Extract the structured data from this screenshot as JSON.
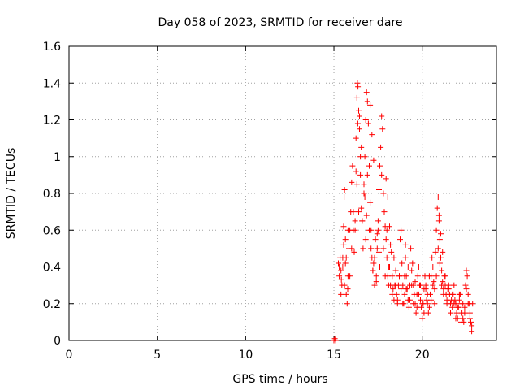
{
  "chart_data": {
    "type": "scatter",
    "title": "Day 058 of 2023, SRMTID for receiver dare",
    "xlabel": "GPS time / hours",
    "ylabel": "SRMTID / TECUs",
    "xlim": [
      0,
      24.2
    ],
    "ylim": [
      0,
      1.6
    ],
    "xticks": [
      0,
      5,
      10,
      15,
      20
    ],
    "yticks": [
      0,
      0.2,
      0.4,
      0.6,
      0.8,
      1,
      1.2,
      1.4,
      1.6
    ],
    "ytick_labels": [
      "0",
      "0.2",
      "0.4",
      "0.6",
      "0.8",
      "1",
      "1.2",
      "1.4",
      "1.6"
    ],
    "grid": true,
    "marker": "+",
    "color": "#ff0000",
    "series": [
      {
        "name": "SRMTID",
        "x": [
          15.0,
          15.05,
          15.1,
          15.25,
          15.3,
          15.35,
          15.4,
          15.42,
          15.45,
          15.5,
          15.55,
          15.58,
          15.6,
          15.65,
          15.7,
          15.75,
          15.78,
          15.8,
          15.85,
          15.9,
          15.95,
          16.0,
          16.05,
          16.1,
          16.15,
          16.2,
          16.25,
          16.3,
          16.33,
          16.36,
          16.4,
          16.45,
          16.5,
          16.55,
          16.6,
          16.65,
          16.7,
          16.75,
          16.8,
          16.85,
          16.9,
          16.95,
          17.0,
          17.05,
          17.1,
          17.15,
          17.2,
          17.25,
          17.3,
          17.35,
          17.4,
          17.45,
          17.5,
          17.55,
          17.6,
          17.65,
          17.7,
          17.75,
          17.8,
          17.85,
          17.9,
          17.95,
          18.0,
          18.05,
          18.1,
          18.15,
          18.2,
          18.25,
          18.3,
          18.35,
          18.4,
          18.45,
          18.5,
          18.55,
          18.6,
          18.65,
          18.7,
          18.75,
          18.8,
          18.85,
          18.9,
          18.95,
          19.0,
          19.05,
          19.1,
          19.15,
          19.2,
          19.25,
          19.3,
          19.35,
          19.4,
          19.45,
          19.5,
          19.55,
          19.6,
          19.65,
          19.7,
          19.75,
          19.8,
          19.85,
          19.9,
          19.95,
          20.0,
          20.05,
          20.1,
          20.15,
          20.2,
          20.25,
          20.3,
          20.35,
          20.4,
          20.45,
          20.5,
          20.55,
          20.6,
          20.65,
          20.7,
          20.75,
          20.8,
          20.85,
          20.9,
          20.95,
          21.0,
          21.05,
          21.1,
          21.15,
          21.2,
          21.25,
          21.3,
          21.35,
          21.4,
          21.45,
          21.5,
          21.55,
          21.6,
          21.65,
          21.7,
          21.75,
          21.8,
          21.85,
          21.9,
          21.95,
          22.0,
          22.05,
          22.1,
          22.15,
          22.2,
          22.25,
          22.3,
          22.35,
          22.4,
          22.45,
          22.5,
          22.55,
          22.6,
          22.65,
          22.7,
          22.75,
          22.8,
          22.85,
          15.3,
          15.4,
          15.5,
          15.6,
          15.7,
          15.8,
          15.9,
          16.0,
          16.1,
          16.2,
          16.3,
          16.4,
          16.5,
          16.6,
          16.7,
          16.8,
          16.9,
          17.0,
          17.1,
          17.2,
          17.3,
          17.4,
          17.5,
          17.6,
          17.7,
          17.8,
          17.9,
          18.0,
          18.1,
          18.2,
          18.3,
          18.4,
          18.5,
          18.6,
          18.7,
          18.8,
          18.9,
          19.0,
          19.1,
          19.2,
          19.3,
          19.4,
          19.5,
          19.6,
          19.7,
          19.8,
          19.9,
          20.0,
          20.1,
          20.2,
          20.3,
          20.4,
          20.5,
          20.6,
          20.7,
          20.8,
          20.9,
          21.0,
          21.1,
          21.2,
          21.3,
          21.4,
          21.5,
          21.6,
          21.7,
          21.8,
          21.9,
          22.0,
          22.1,
          22.2,
          22.3,
          22.4,
          22.5,
          22.6,
          22.7,
          22.8,
          16.45,
          16.55,
          17.05,
          17.15,
          17.95,
          18.05,
          16.25,
          16.35,
          17.25,
          18.15,
          19.05,
          20.95,
          21.05,
          21.15,
          15.55,
          15.65,
          16.75,
          16.85,
          17.45,
          17.55
        ],
        "y": [
          0.0,
          0.01,
          0.0,
          0.42,
          0.4,
          0.45,
          0.38,
          0.33,
          0.3,
          0.45,
          0.62,
          0.78,
          0.82,
          0.55,
          0.25,
          0.2,
          0.28,
          0.35,
          0.5,
          0.6,
          0.7,
          0.86,
          0.95,
          0.6,
          0.48,
          0.65,
          1.1,
          1.32,
          1.4,
          1.38,
          1.25,
          1.15,
          0.9,
          0.72,
          0.65,
          0.5,
          0.85,
          1.0,
          1.2,
          1.35,
          1.3,
          1.18,
          0.95,
          0.75,
          0.6,
          0.45,
          0.38,
          0.42,
          0.3,
          0.55,
          0.35,
          0.5,
          0.65,
          0.82,
          0.95,
          1.05,
          1.22,
          1.15,
          0.8,
          0.7,
          0.62,
          0.55,
          0.45,
          0.35,
          0.3,
          0.4,
          0.52,
          0.48,
          0.35,
          0.28,
          0.22,
          0.3,
          0.38,
          0.25,
          0.2,
          0.3,
          0.35,
          0.55,
          0.6,
          0.42,
          0.3,
          0.2,
          0.25,
          0.45,
          0.35,
          0.28,
          0.22,
          0.18,
          0.3,
          0.5,
          0.38,
          0.42,
          0.3,
          0.25,
          0.2,
          0.15,
          0.25,
          0.35,
          0.4,
          0.3,
          0.22,
          0.18,
          0.12,
          0.2,
          0.28,
          0.35,
          0.3,
          0.22,
          0.2,
          0.15,
          0.18,
          0.25,
          0.35,
          0.45,
          0.4,
          0.32,
          0.28,
          0.48,
          0.6,
          0.72,
          0.78,
          0.65,
          0.55,
          0.45,
          0.38,
          0.32,
          0.28,
          0.35,
          0.3,
          0.25,
          0.22,
          0.28,
          0.3,
          0.25,
          0.2,
          0.22,
          0.18,
          0.25,
          0.3,
          0.22,
          0.2,
          0.15,
          0.12,
          0.18,
          0.22,
          0.25,
          0.2,
          0.15,
          0.12,
          0.1,
          0.18,
          0.3,
          0.38,
          0.35,
          0.25,
          0.2,
          0.15,
          0.1,
          0.08,
          0.2,
          0.35,
          0.25,
          0.4,
          0.3,
          0.45,
          0.6,
          0.35,
          0.5,
          0.7,
          0.6,
          0.85,
          0.7,
          1.0,
          0.65,
          0.8,
          0.55,
          0.9,
          0.6,
          0.5,
          0.38,
          0.45,
          0.32,
          0.6,
          0.4,
          0.9,
          0.5,
          0.35,
          0.6,
          0.4,
          0.3,
          0.25,
          0.45,
          0.3,
          0.22,
          0.35,
          0.28,
          0.2,
          0.35,
          0.28,
          0.4,
          0.22,
          0.3,
          0.2,
          0.32,
          0.18,
          0.25,
          0.3,
          0.2,
          0.15,
          0.28,
          0.25,
          0.35,
          0.22,
          0.3,
          0.2,
          0.35,
          0.5,
          0.42,
          0.3,
          0.25,
          0.35,
          0.2,
          0.28,
          0.15,
          0.25,
          0.2,
          0.12,
          0.18,
          0.25,
          0.1,
          0.2,
          0.15,
          0.28,
          0.2,
          0.12,
          0.05,
          1.22,
          1.05,
          1.28,
          1.12,
          0.88,
          0.78,
          0.92,
          1.18,
          0.98,
          0.62,
          0.52,
          0.68,
          0.58,
          0.48,
          0.52,
          0.42,
          0.78,
          0.68,
          0.58,
          0.48
        ]
      }
    ]
  }
}
